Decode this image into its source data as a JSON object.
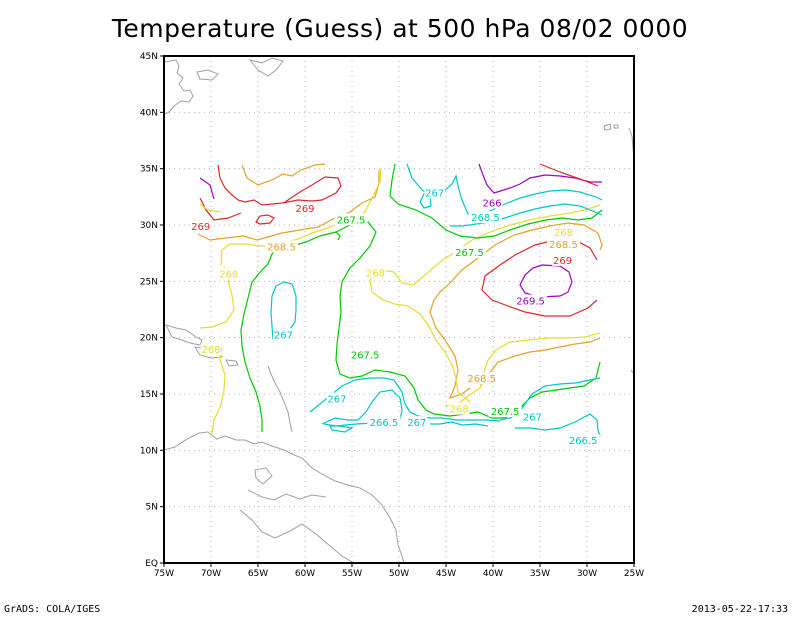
{
  "title": "Temperature (Guess) at 500 hPa 08/02 0000",
  "credit": "GrADS: COLA/IGES",
  "timestamp": "2013-05-22-17:33",
  "map": {
    "lon_range": [
      -75,
      -25
    ],
    "lat_range": [
      0,
      45
    ],
    "grid_dotted": true,
    "x_ticks": [
      "75W",
      "70W",
      "65W",
      "60W",
      "55W",
      "50W",
      "45W",
      "40W",
      "35W",
      "30W",
      "25W"
    ],
    "y_ticks": [
      "EQ",
      "5N",
      "10N",
      "15N",
      "20N",
      "25N",
      "30N",
      "35N",
      "40N",
      "45N"
    ]
  },
  "contour_labels": [
    {
      "text": "269",
      "lon": -71.1,
      "lat": 29.9,
      "color": "#e02828"
    },
    {
      "text": "269",
      "lon": -60.0,
      "lat": 31.5,
      "color": "#e02828"
    },
    {
      "text": "268.5",
      "lon": -62.5,
      "lat": 28.1,
      "color": "#e6a028"
    },
    {
      "text": "267.5",
      "lon": -55.1,
      "lat": 30.5,
      "color": "#00c800"
    },
    {
      "text": "268",
      "lon": -68.1,
      "lat": 25.7,
      "color": "#e6dc32"
    },
    {
      "text": "267",
      "lon": -62.3,
      "lat": 20.3,
      "color": "#00c8c8"
    },
    {
      "text": "268",
      "lon": -70.0,
      "lat": 19.0,
      "color": "#e6dc32"
    },
    {
      "text": "268",
      "lon": -52.5,
      "lat": 25.8,
      "color": "#e6dc32"
    },
    {
      "text": "267",
      "lon": -46.2,
      "lat": 32.9,
      "color": "#00c8c8"
    },
    {
      "text": "266",
      "lon": -40.1,
      "lat": 32.0,
      "color": "#a000c8"
    },
    {
      "text": "268.5",
      "lon": -40.8,
      "lat": 30.7,
      "color": "#00c8c8"
    },
    {
      "text": "267.5",
      "lon": -42.5,
      "lat": 27.6,
      "color": "#00c800"
    },
    {
      "text": "268",
      "lon": -32.5,
      "lat": 29.4,
      "color": "#e6dc32"
    },
    {
      "text": "268.5",
      "lon": -32.5,
      "lat": 28.3,
      "color": "#e6a028"
    },
    {
      "text": "269",
      "lon": -32.6,
      "lat": 26.9,
      "color": "#e02828"
    },
    {
      "text": "269.5",
      "lon": -36.0,
      "lat": 23.3,
      "color": "#a000c8"
    },
    {
      "text": "267.5",
      "lon": -53.6,
      "lat": 18.5,
      "color": "#00c800"
    },
    {
      "text": "268.5",
      "lon": -41.2,
      "lat": 16.4,
      "color": "#e6a028"
    },
    {
      "text": "267",
      "lon": -56.6,
      "lat": 14.6,
      "color": "#00c8c8"
    },
    {
      "text": "268",
      "lon": -43.6,
      "lat": 13.7,
      "color": "#e6dc32"
    },
    {
      "text": "267.5",
      "lon": -38.7,
      "lat": 13.5,
      "color": "#00c800"
    },
    {
      "text": "266.5",
      "lon": -51.6,
      "lat": 12.5,
      "color": "#00c8c8"
    },
    {
      "text": "267",
      "lon": -48.1,
      "lat": 12.5,
      "color": "#00c8c8"
    },
    {
      "text": "267",
      "lon": -35.8,
      "lat": 13.0,
      "color": "#00c8c8"
    },
    {
      "text": "266.5",
      "lon": -30.4,
      "lat": 10.9,
      "color": "#00c8c8"
    }
  ],
  "colors": {
    "purple": "#a000c8",
    "red": "#e02828",
    "orange": "#e6a028",
    "yellow": "#e6dc32",
    "green": "#00c800",
    "cyan": "#00c8c8",
    "coast": "#a0a0a0",
    "grid": "#b4b4b4"
  }
}
